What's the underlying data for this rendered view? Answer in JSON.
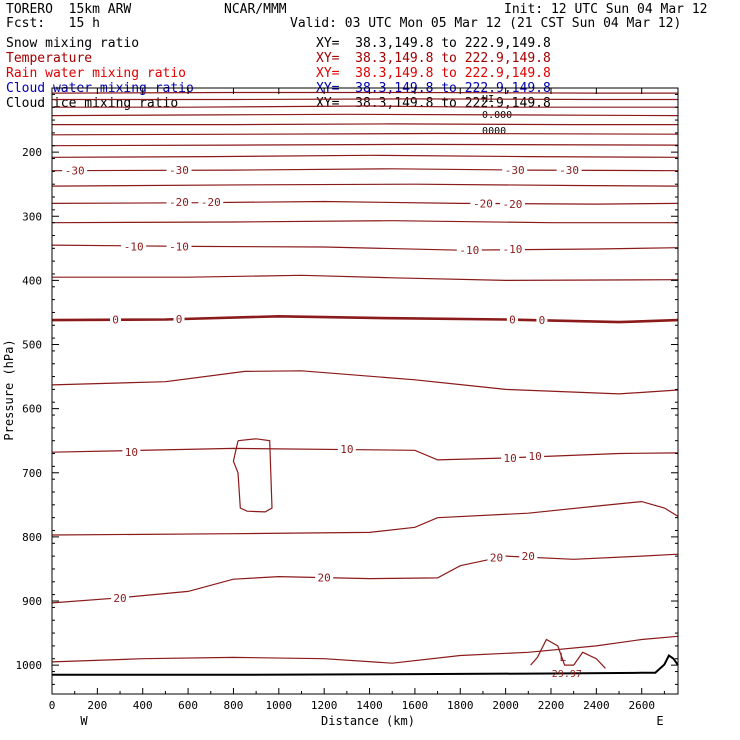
{
  "header": {
    "model": "TORERO  15km ARW",
    "center": "NCAR/MMM",
    "init": "Init: 12 UTC Sun 04 Mar 12",
    "fcst": "Fcst:   15 h",
    "valid": "Valid: 03 UTC Mon 05 Mar 12 (21 CST Sun 04 Mar 12)"
  },
  "fields": [
    {
      "label": "Snow mixing ratio",
      "xy": "XY=  38.3,149.8 to 222.9,149.8",
      "color": "#000000"
    },
    {
      "label": "Temperature",
      "xy": "XY=  38.3,149.8 to 222.9,149.8",
      "color": "#a00000"
    },
    {
      "label": "Rain water mixing ratio",
      "xy": "XY=  38.3,149.8 to 222.9,149.8",
      "color": "#e00000"
    },
    {
      "label": "Cloud water mixing ratio",
      "xy": "XY=  38.3,149.8 to 222.9,149.8",
      "color": "#0000b0"
    },
    {
      "label": "Cloud ice mixing ratio",
      "xy": "XY=  38.3,149.8 to 222.9,149.8",
      "color": "#000000"
    }
  ],
  "top_note": [
    "HI",
    "0.000",
    "0000"
  ],
  "chart_data": {
    "type": "line",
    "xlabel": "Distance (km)",
    "ylabel": "Pressure (hPa)",
    "xlim": [
      0,
      2760
    ],
    "ylim": [
      1045,
      100
    ],
    "xticks": [
      0,
      200,
      400,
      600,
      800,
      1000,
      1200,
      1400,
      1600,
      1800,
      2000,
      2200,
      2400,
      2600
    ],
    "yticks": [
      200,
      300,
      400,
      500,
      600,
      700,
      800,
      900,
      1000
    ],
    "x_end_labels": {
      "left": "W",
      "right": "E"
    },
    "contour_color": "#8b1a1a",
    "isotherms": [
      {
        "level": -70,
        "p": [
          [
            0,
            108
          ],
          [
            800,
            107
          ],
          [
            1600,
            107
          ],
          [
            2400,
            108
          ],
          [
            2760,
            108
          ]
        ]
      },
      {
        "level": -65,
        "p": [
          [
            0,
            118
          ],
          [
            800,
            118
          ],
          [
            1600,
            117
          ],
          [
            2400,
            118
          ],
          [
            2760,
            118
          ]
        ]
      },
      {
        "level": -60,
        "p": [
          [
            0,
            130
          ],
          [
            600,
            130
          ],
          [
            1400,
            128
          ],
          [
            1900,
            130
          ],
          [
            2760,
            130
          ]
        ]
      },
      {
        "level": -55,
        "p": [
          [
            0,
            143
          ],
          [
            700,
            142
          ],
          [
            1300,
            141
          ],
          [
            2000,
            142
          ],
          [
            2760,
            143
          ]
        ]
      },
      {
        "level": -50,
        "p": [
          [
            0,
            157
          ],
          [
            800,
            157
          ],
          [
            1500,
            156
          ],
          [
            2300,
            157
          ],
          [
            2760,
            157
          ]
        ]
      },
      {
        "level": -45,
        "p": [
          [
            0,
            173
          ],
          [
            900,
            172
          ],
          [
            1700,
            171
          ],
          [
            2760,
            172
          ]
        ]
      },
      {
        "level": -40,
        "p": [
          [
            0,
            190
          ],
          [
            800,
            189
          ],
          [
            1600,
            188
          ],
          [
            2760,
            189
          ]
        ]
      },
      {
        "level": -35,
        "p": [
          [
            0,
            208
          ],
          [
            700,
            207
          ],
          [
            1400,
            205
          ],
          [
            2100,
            207
          ],
          [
            2760,
            208
          ]
        ]
      },
      {
        "level": -30,
        "p": [
          [
            0,
            229
          ],
          [
            800,
            228
          ],
          [
            1500,
            226
          ],
          [
            2100,
            228
          ],
          [
            2760,
            229
          ]
        ]
      },
      {
        "level": -25,
        "p": [
          [
            0,
            253
          ],
          [
            900,
            251
          ],
          [
            1600,
            250
          ],
          [
            2300,
            252
          ],
          [
            2760,
            253
          ]
        ]
      },
      {
        "level": -20,
        "p": [
          [
            0,
            280
          ],
          [
            600,
            279
          ],
          [
            1200,
            277
          ],
          [
            1800,
            280
          ],
          [
            2400,
            281
          ],
          [
            2760,
            280
          ]
        ]
      },
      {
        "level": -15,
        "p": [
          [
            0,
            310
          ],
          [
            800,
            309
          ],
          [
            1500,
            307
          ],
          [
            2200,
            310
          ],
          [
            2760,
            310
          ]
        ]
      },
      {
        "level": -10,
        "p": [
          [
            0,
            345
          ],
          [
            600,
            347
          ],
          [
            1200,
            348
          ],
          [
            1800,
            353
          ],
          [
            2400,
            351
          ],
          [
            2760,
            349
          ]
        ]
      },
      {
        "level": -5,
        "p": [
          [
            0,
            395
          ],
          [
            600,
            395
          ],
          [
            1100,
            392
          ],
          [
            1500,
            396
          ],
          [
            2000,
            400
          ],
          [
            2760,
            399
          ]
        ]
      },
      {
        "level": 0,
        "p": [
          [
            0,
            462
          ],
          [
            500,
            461
          ],
          [
            1000,
            456
          ],
          [
            1500,
            459
          ],
          [
            2000,
            461
          ],
          [
            2500,
            465
          ],
          [
            2760,
            462
          ]
        ]
      },
      {
        "level": 5,
        "p": [
          [
            0,
            563
          ],
          [
            500,
            558
          ],
          [
            850,
            542
          ],
          [
            1100,
            541
          ],
          [
            1600,
            555
          ],
          [
            2000,
            570
          ],
          [
            2500,
            577
          ],
          [
            2760,
            571
          ]
        ]
      },
      {
        "level": 10,
        "p": [
          [
            0,
            668
          ],
          [
            800,
            662
          ],
          [
            1600,
            665
          ],
          [
            1700,
            680
          ],
          [
            2000,
            677
          ],
          [
            2500,
            670
          ],
          [
            2760,
            669
          ]
        ]
      },
      {
        "level": 15,
        "p": [
          [
            0,
            797
          ],
          [
            800,
            795
          ],
          [
            1400,
            793
          ],
          [
            1600,
            785
          ],
          [
            1700,
            770
          ],
          [
            2100,
            763
          ],
          [
            2400,
            752
          ],
          [
            2600,
            745
          ],
          [
            2700,
            755
          ],
          [
            2760,
            768
          ]
        ]
      },
      {
        "level": 20,
        "p": [
          [
            0,
            903
          ],
          [
            300,
            895
          ],
          [
            600,
            885
          ],
          [
            800,
            866
          ],
          [
            1000,
            862
          ],
          [
            1400,
            865
          ],
          [
            1700,
            864
          ],
          [
            1800,
            845
          ],
          [
            2000,
            830
          ],
          [
            2300,
            835
          ],
          [
            2600,
            830
          ],
          [
            2760,
            827
          ]
        ]
      },
      {
        "level": 25,
        "p": [
          [
            0,
            995
          ],
          [
            400,
            990
          ],
          [
            800,
            988
          ],
          [
            1200,
            990
          ],
          [
            1500,
            997
          ],
          [
            1800,
            985
          ],
          [
            2100,
            980
          ],
          [
            2400,
            970
          ],
          [
            2600,
            960
          ],
          [
            2760,
            955
          ]
        ]
      }
    ],
    "contour_labels": [
      {
        "text": "-30",
        "x": 100,
        "p": 229
      },
      {
        "text": "-30",
        "x": 560,
        "p": 228
      },
      {
        "text": "-30",
        "x": 2040,
        "p": 228
      },
      {
        "text": "-30",
        "x": 2280,
        "p": 228
      },
      {
        "text": "-20",
        "x": 560,
        "p": 278
      },
      {
        "text": "-20",
        "x": 700,
        "p": 278
      },
      {
        "text": "-20",
        "x": 1900,
        "p": 280
      },
      {
        "text": "-20",
        "x": 2030,
        "p": 281
      },
      {
        "text": "-10",
        "x": 360,
        "p": 347
      },
      {
        "text": "-10",
        "x": 560,
        "p": 347
      },
      {
        "text": "-10",
        "x": 1840,
        "p": 353
      },
      {
        "text": "-10",
        "x": 2030,
        "p": 351
      },
      {
        "text": "0",
        "x": 280,
        "p": 461
      },
      {
        "text": "0",
        "x": 560,
        "p": 460
      },
      {
        "text": "0",
        "x": 2030,
        "p": 461
      },
      {
        "text": "0",
        "x": 2160,
        "p": 462
      },
      {
        "text": "10",
        "x": 350,
        "p": 668
      },
      {
        "text": "10",
        "x": 1300,
        "p": 663
      },
      {
        "text": "10",
        "x": 2020,
        "p": 677
      },
      {
        "text": "10",
        "x": 2130,
        "p": 674
      },
      {
        "text": "20",
        "x": 300,
        "p": 895
      },
      {
        "text": "20",
        "x": 1200,
        "p": 863
      },
      {
        "text": "20",
        "x": 1960,
        "p": 832
      },
      {
        "text": "20",
        "x": 2100,
        "p": 830
      }
    ],
    "enclosed_contour": [
      [
        820,
        650
      ],
      [
        900,
        647
      ],
      [
        960,
        650
      ],
      [
        970,
        755
      ],
      [
        940,
        761
      ],
      [
        860,
        760
      ],
      [
        830,
        755
      ],
      [
        820,
        700
      ],
      [
        800,
        682
      ],
      [
        820,
        650
      ]
    ],
    "low_center": {
      "marker": "L",
      "value": "29.97",
      "x": 2270,
      "p": 1000
    },
    "low_contour": [
      [
        2110,
        1000
      ],
      [
        2140,
        988
      ],
      [
        2180,
        960
      ],
      [
        2230,
        970
      ],
      [
        2260,
        1000
      ],
      [
        2300,
        1000
      ],
      [
        2340,
        980
      ],
      [
        2400,
        990
      ],
      [
        2440,
        1005
      ]
    ],
    "terrain": [
      [
        0,
        1015
      ],
      [
        800,
        1015
      ],
      [
        1600,
        1014
      ],
      [
        2200,
        1013
      ],
      [
        2600,
        1012
      ],
      [
        2660,
        1012
      ],
      [
        2700,
        999
      ],
      [
        2720,
        985
      ],
      [
        2740,
        990
      ],
      [
        2760,
        1000
      ]
    ]
  }
}
